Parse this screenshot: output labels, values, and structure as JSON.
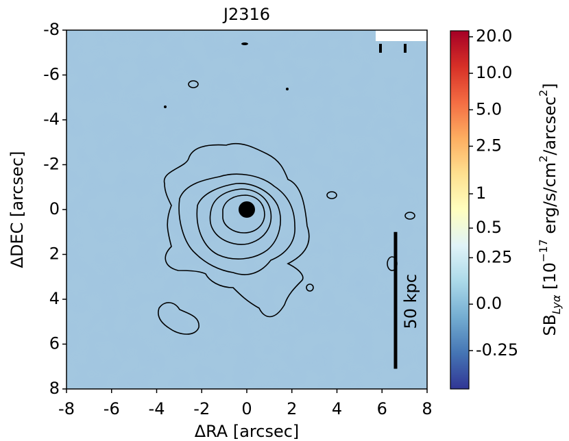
{
  "chart_data": {
    "type": "image",
    "title": "J2316",
    "xlabel": "ΔRA [arcsec]",
    "ylabel": "ΔDEC [arcsec]",
    "xlim": [
      -8,
      8
    ],
    "xticks": [
      -8,
      -6,
      -4,
      -2,
      0,
      2,
      4,
      6,
      8
    ],
    "ylim": [
      8,
      -8
    ],
    "yticks": [
      -8,
      -6,
      -4,
      -2,
      0,
      2,
      4,
      6,
      8
    ],
    "annotation": "50 kpc",
    "colorbar": {
      "scale": "asinh",
      "colormap": "RdYlBu_r",
      "clim": [
        -0.6,
        22.4
      ],
      "ticks": [
        {
          "value": 20,
          "label": "20.0"
        },
        {
          "value": 10,
          "label": "10.0"
        },
        {
          "value": 5,
          "label": "5.0"
        },
        2.5,
        1,
        0.5,
        0.25,
        {
          "value": 0,
          "label": "0.0"
        },
        -0.25
      ],
      "label_parts": [
        {
          "text": "SB"
        },
        {
          "text": "Lyα",
          "shift": "sub"
        },
        {
          "text": " [10"
        },
        {
          "text": "−17",
          "shift": "sup"
        },
        {
          "text": " erg/s/cm"
        },
        {
          "text": "2",
          "shift": "sup"
        },
        {
          "text": "/arcsec"
        },
        {
          "text": "2",
          "shift": "sup"
        },
        {
          "text": "]"
        }
      ]
    }
  }
}
